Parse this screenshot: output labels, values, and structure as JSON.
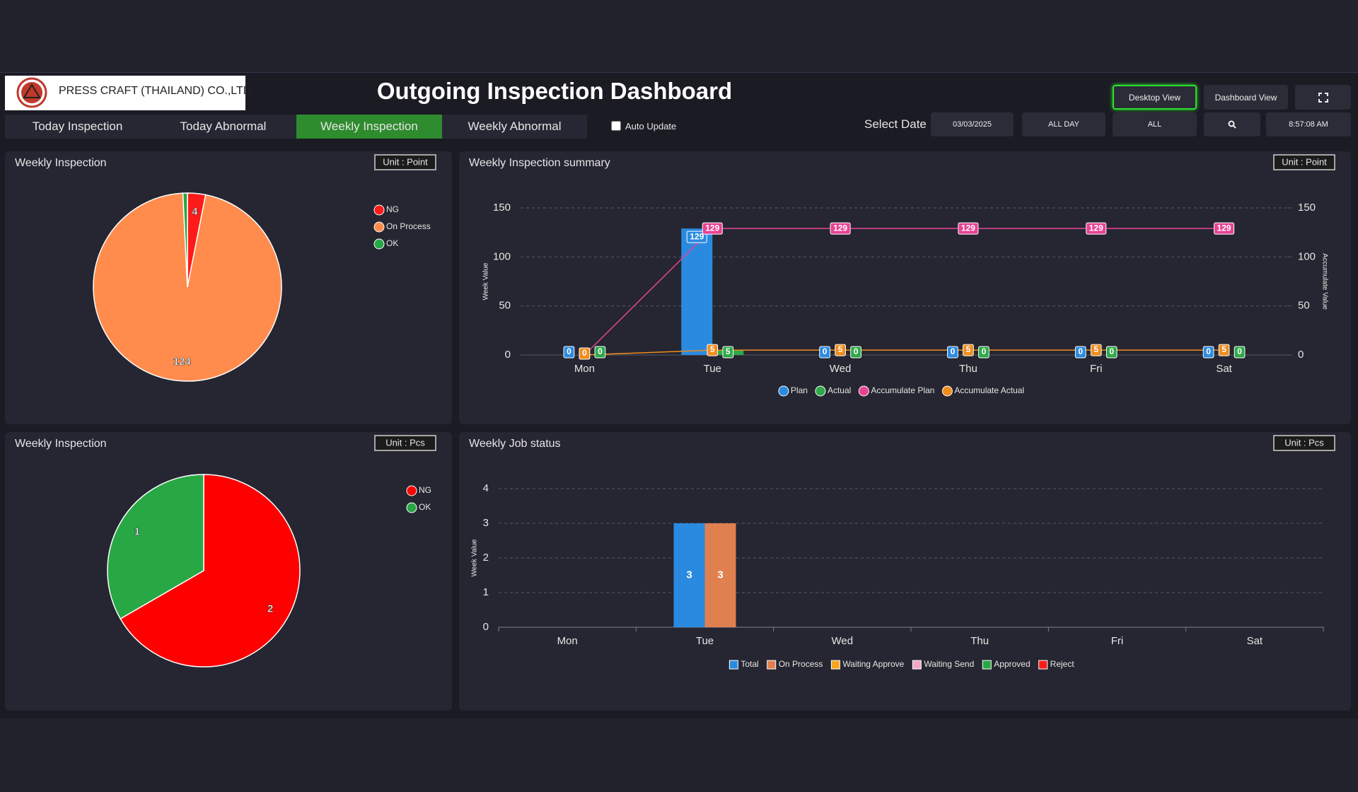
{
  "header": {
    "company": "PRESS CRAFT (THAILAND) CO.,LTD",
    "title": "Outgoing Inspection Dashboard",
    "buttons": [
      "Desktop View",
      "Dashboard View"
    ]
  },
  "tabs": {
    "items": [
      "Today Inspection",
      "Today Abnormal",
      "Weekly Inspection",
      "Weekly Abnormal"
    ],
    "active": 2
  },
  "controls": {
    "auto_update": "Auto Update",
    "auto_update_checked": false,
    "select_date": "Select Date",
    "date": "03/03/2025",
    "period": "ALL DAY",
    "filter": "ALL",
    "time": "8:57:08 AM"
  },
  "chart_data": [
    {
      "type": "pie",
      "title": "Weekly Inspection",
      "unit": "Unit : Point",
      "categories": [
        "NG",
        "On Process",
        "OK"
      ],
      "values": [
        4,
        124,
        1
      ],
      "colors": [
        "#ff1a1a",
        "#ff8c4d",
        "#28a745"
      ]
    },
    {
      "type": "combo",
      "title": "Weekly Inspection summary",
      "unit": "Unit : Point",
      "categories": [
        "Mon",
        "Tue",
        "Wed",
        "Thu",
        "Fri",
        "Sat"
      ],
      "ylabel": "Week Value",
      "y2label": "Accumulate Value",
      "ylim": [
        0,
        150
      ],
      "yticks": [
        0,
        50,
        100,
        150
      ],
      "y2lim": [
        0,
        150
      ],
      "y2ticks": [
        0,
        50,
        100,
        150
      ],
      "grid": true,
      "series": [
        {
          "name": "Plan",
          "kind": "bar",
          "color": "#2a8ae0",
          "values": [
            0,
            129,
            0,
            0,
            0,
            0
          ]
        },
        {
          "name": "Actual",
          "kind": "bar",
          "color": "#2ea84a",
          "values": [
            0,
            5,
            0,
            0,
            0,
            0
          ]
        },
        {
          "name": "Accumulate Plan",
          "kind": "line",
          "axis": "y2",
          "color": "#e84393",
          "values": [
            0,
            129,
            129,
            129,
            129,
            129
          ]
        },
        {
          "name": "Accumulate Actual",
          "kind": "line",
          "axis": "y2",
          "color": "#f08c1e",
          "values": [
            0,
            5,
            5,
            5,
            5,
            5
          ]
        }
      ]
    },
    {
      "type": "pie",
      "title": "Weekly Inspection",
      "unit": "Unit : Pcs",
      "categories": [
        "NG",
        "OK"
      ],
      "values": [
        2,
        1
      ],
      "colors": [
        "#ff0000",
        "#28a745"
      ]
    },
    {
      "type": "bar",
      "title": "Weekly Job status",
      "unit": "Unit : Pcs",
      "categories": [
        "Mon",
        "Tue",
        "Wed",
        "Thu",
        "Fri",
        "Sat"
      ],
      "ylabel": "Week Value",
      "ylim": [
        0,
        4
      ],
      "yticks": [
        0,
        1,
        2,
        3,
        4
      ],
      "grid": true,
      "series": [
        {
          "name": "Total",
          "color": "#2a8ae0",
          "values": [
            0,
            3,
            0,
            0,
            0,
            0
          ]
        },
        {
          "name": "On Process",
          "color": "#e0804f",
          "values": [
            0,
            3,
            0,
            0,
            0,
            0
          ]
        },
        {
          "name": "Waiting Approve",
          "color": "#f5a623",
          "values": [
            0,
            0,
            0,
            0,
            0,
            0
          ]
        },
        {
          "name": "Waiting Send",
          "color": "#f4a6c8",
          "values": [
            0,
            0,
            0,
            0,
            0,
            0
          ]
        },
        {
          "name": "Approved",
          "color": "#28a745",
          "values": [
            0,
            0,
            0,
            0,
            0,
            0
          ]
        },
        {
          "name": "Reject",
          "color": "#ff1a1a",
          "values": [
            0,
            0,
            0,
            0,
            0,
            0
          ]
        }
      ]
    }
  ]
}
